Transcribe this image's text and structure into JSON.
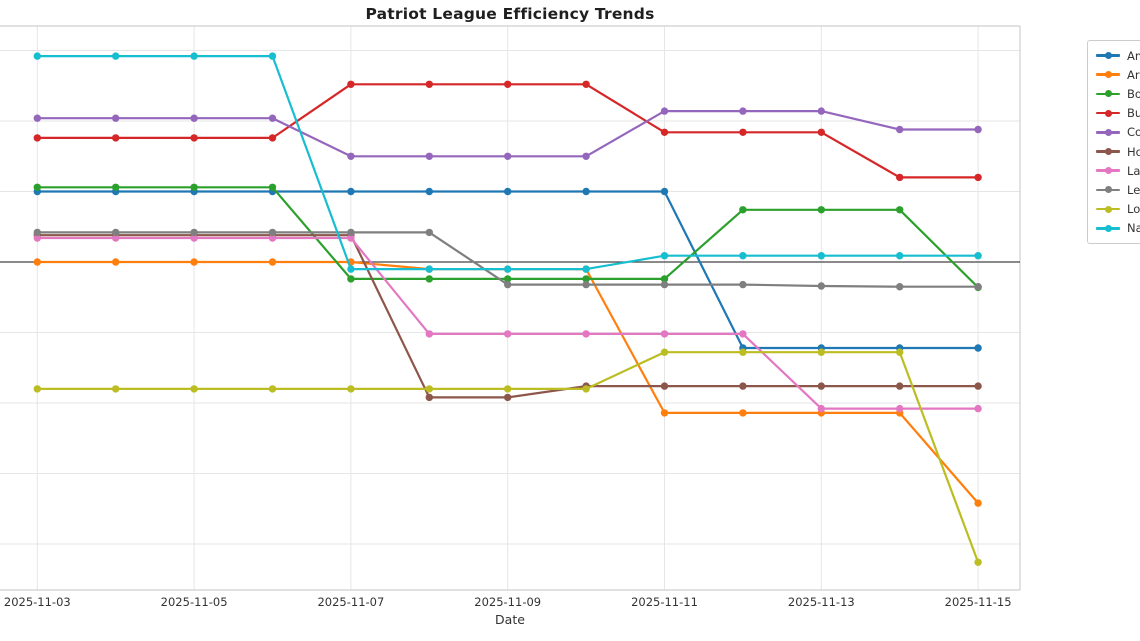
{
  "chart_data": {
    "type": "line",
    "title": "Patriot League Efficiency Trends",
    "xlabel": "Date",
    "ylabel": "",
    "x": [
      "2025-11-03",
      "2025-11-04",
      "2025-11-05",
      "2025-11-06",
      "2025-11-07",
      "2025-11-08",
      "2025-11-09",
      "2025-11-10",
      "2025-11-11",
      "2025-11-12",
      "2025-11-13",
      "2025-11-14",
      "2025-11-15"
    ],
    "x_tick_labels": [
      "2025-11-03",
      "2025-11-05",
      "2025-11-07",
      "2025-11-09",
      "2025-11-11",
      "2025-11-13",
      "2025-11-15"
    ],
    "x_tick_indices": [
      0,
      2,
      4,
      6,
      8,
      10,
      12
    ],
    "ylim": [
      -23.3,
      16.7
    ],
    "grid": true,
    "y_gridline_values": [
      15,
      10,
      5,
      0,
      -5,
      -10,
      -15,
      -20
    ],
    "zero_line": true,
    "legend_position": "outside upper right (clipped at image edge)",
    "series": [
      {
        "label": "Am",
        "color": "#1f77b4",
        "values": [
          5.0,
          5.0,
          5.0,
          5.0,
          5.0,
          5.0,
          5.0,
          5.0,
          5.0,
          -6.1,
          -6.1,
          -6.1,
          -6.1
        ]
      },
      {
        "label": "Ar",
        "color": "#ff7f0e",
        "values": [
          0.0,
          0.0,
          0.0,
          0.0,
          0.0,
          -0.5,
          -0.5,
          -0.5,
          -10.7,
          -10.7,
          -10.7,
          -10.7,
          -17.1
        ]
      },
      {
        "label": "Bo",
        "color": "#2ca02c",
        "values": [
          5.3,
          5.3,
          5.3,
          5.3,
          -1.2,
          -1.2,
          -1.2,
          -1.2,
          -1.2,
          3.7,
          3.7,
          3.7,
          -1.8
        ]
      },
      {
        "label": "Bu",
        "color": "#d62728",
        "values": [
          8.8,
          8.8,
          8.8,
          8.8,
          12.6,
          12.6,
          12.6,
          12.6,
          9.2,
          9.2,
          9.2,
          6.0,
          6.0
        ]
      },
      {
        "label": "Co",
        "color": "#9467bd",
        "values": [
          10.2,
          10.2,
          10.2,
          10.2,
          7.5,
          7.5,
          7.5,
          7.5,
          10.7,
          10.7,
          10.7,
          9.4,
          9.4
        ]
      },
      {
        "label": "Ho",
        "color": "#8c564b",
        "values": [
          1.9,
          1.9,
          1.9,
          1.9,
          1.9,
          -9.6,
          -9.6,
          -8.8,
          -8.8,
          -8.8,
          -8.8,
          -8.8,
          -8.8
        ]
      },
      {
        "label": "La",
        "color": "#e377c2",
        "values": [
          1.7,
          1.7,
          1.7,
          1.7,
          1.7,
          -5.1,
          -5.1,
          -5.1,
          -5.1,
          -5.1,
          -10.4,
          -10.4,
          -10.4
        ]
      },
      {
        "label": "Le",
        "color": "#7f7f7f",
        "values": [
          2.1,
          2.1,
          2.1,
          2.1,
          2.1,
          2.1,
          -1.6,
          -1.6,
          -1.6,
          -1.6,
          -1.7,
          -1.75,
          -1.75
        ]
      },
      {
        "label": "Lo",
        "color": "#bcbd22",
        "values": [
          -9.0,
          -9.0,
          -9.0,
          -9.0,
          -9.0,
          -9.0,
          -9.0,
          -9.0,
          -6.4,
          -6.4,
          -6.4,
          -6.4,
          -21.3
        ]
      },
      {
        "label": "Na",
        "color": "#17becf",
        "values": [
          14.6,
          14.6,
          14.6,
          14.6,
          -0.5,
          -0.5,
          -0.5,
          -0.5,
          0.45,
          0.45,
          0.45,
          0.45,
          0.45
        ]
      }
    ],
    "style": {
      "grid_color": "#e6e6e6",
      "spine_color": "#cfcfcf",
      "zero_line_color": "#454545",
      "tick_label_color": "#333333",
      "title_color": "#1f1f1f"
    }
  }
}
